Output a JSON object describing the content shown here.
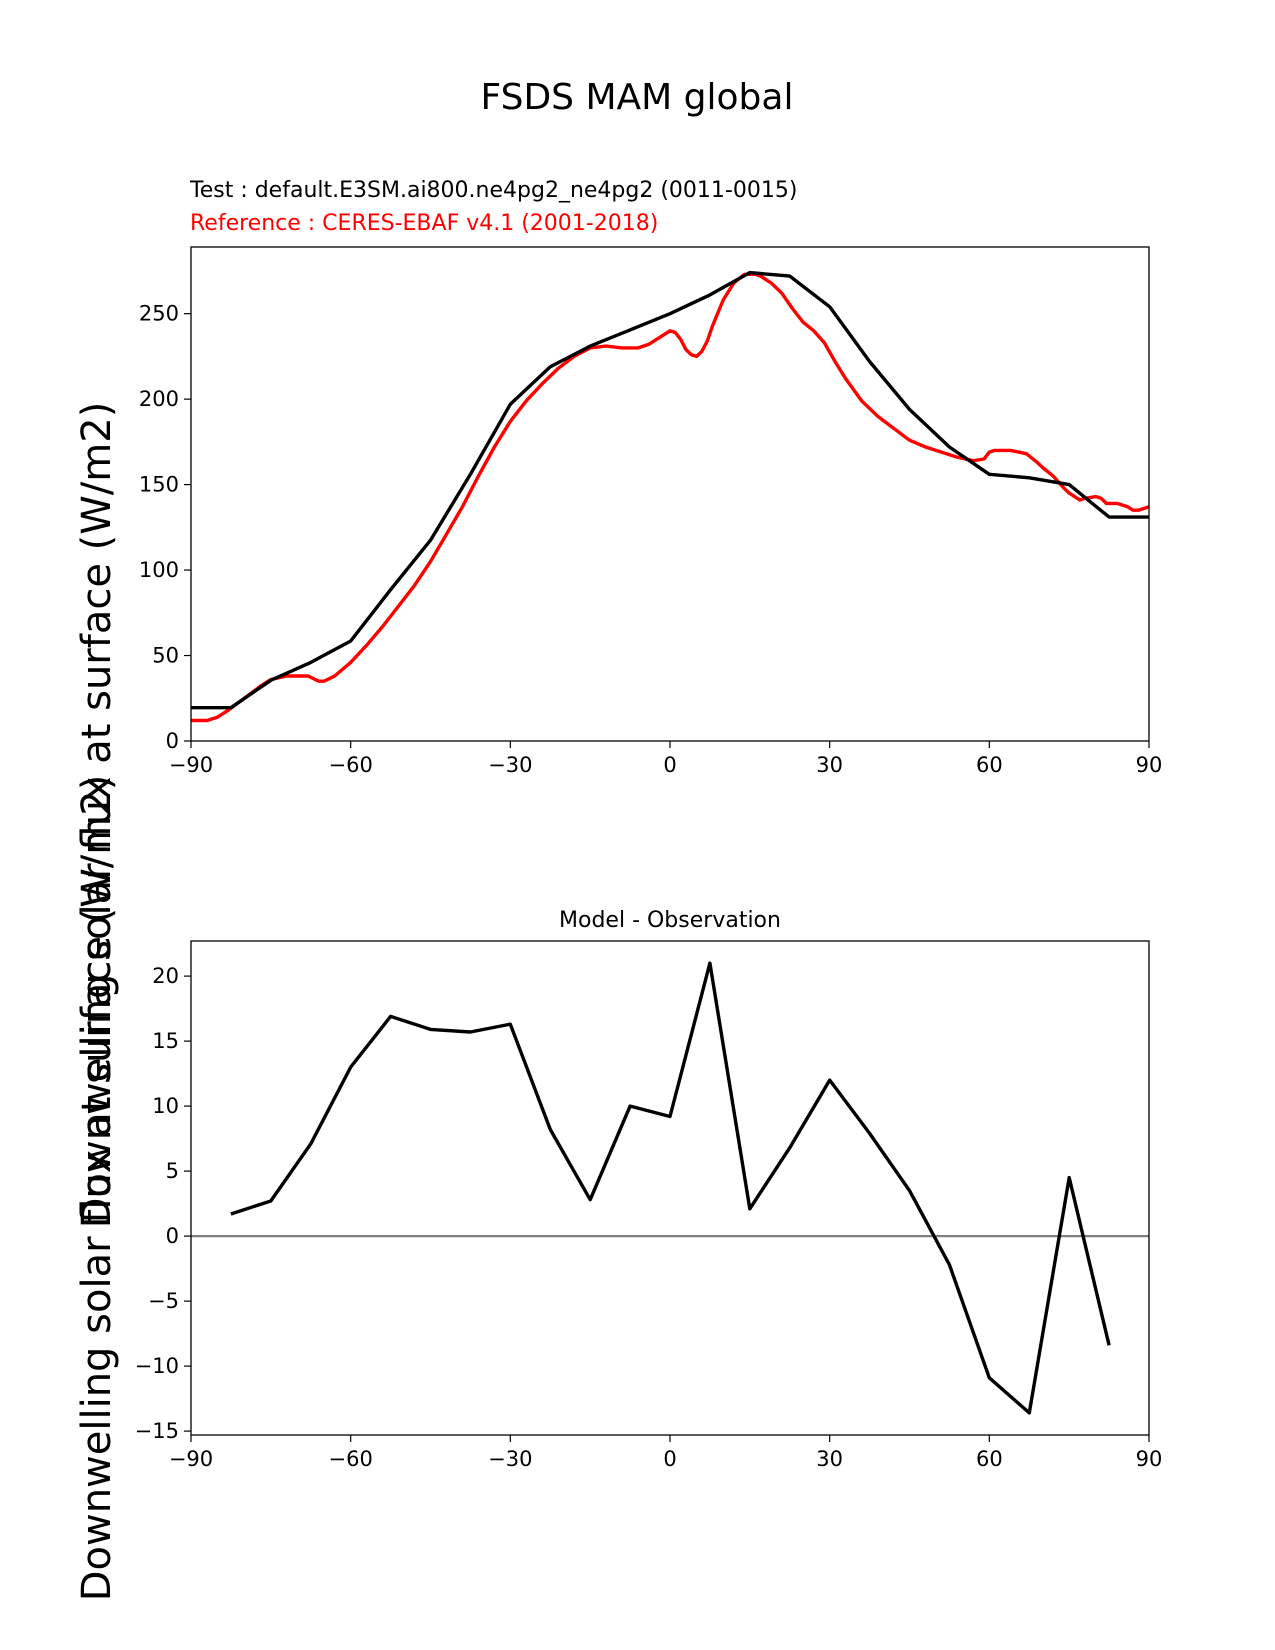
{
  "figure": {
    "title": "FSDS MAM global",
    "ylabel": "Downwelling solar flux at surface (W/m2)"
  },
  "chart_data": [
    {
      "type": "line",
      "test_label": "Test : default.E3SM.ai800.ne4pg2_ne4pg2 (0011-0015)",
      "reference_label": "Reference : CERES-EBAF v4.1 (2001-2018)",
      "xlim": [
        -90,
        90
      ],
      "ylim": [
        0,
        289
      ],
      "xticks": [
        -90,
        -60,
        -30,
        0,
        30,
        60,
        90
      ],
      "xtick_labels": [
        "−90",
        "−60",
        "−30",
        "0",
        "30",
        "60",
        "90"
      ],
      "yticks": [
        0,
        50,
        100,
        150,
        200,
        250
      ],
      "ytick_labels": [
        "0",
        "50",
        "100",
        "150",
        "200",
        "250"
      ],
      "grid": false,
      "series": [
        {
          "color": "#ff0000",
          "x": [
            -90,
            -87,
            -85,
            -83,
            -80,
            -77,
            -75,
            -72,
            -70,
            -68,
            -66,
            -65,
            -63,
            -60,
            -57,
            -54,
            -51,
            -48,
            -45,
            -42,
            -39,
            -36,
            -33,
            -30,
            -27,
            -24,
            -21,
            -18,
            -15,
            -12,
            -9,
            -6,
            -4,
            -2,
            0,
            1,
            2,
            3,
            4,
            5,
            6,
            7,
            8,
            10,
            12,
            14,
            16,
            17,
            19,
            21,
            23,
            25,
            27,
            29,
            31,
            33,
            36,
            39,
            42,
            45,
            48,
            51,
            54,
            57,
            59,
            60,
            61,
            62,
            64,
            67,
            69,
            70,
            72,
            74,
            75,
            77,
            78,
            80,
            81,
            82,
            84,
            86,
            87,
            88,
            90
          ],
          "y": [
            12,
            12,
            14,
            18,
            25,
            32,
            36,
            38,
            38,
            38,
            35,
            35,
            38,
            46,
            56,
            67,
            79,
            91,
            105,
            121,
            137,
            155,
            172,
            187,
            199,
            209,
            218,
            225,
            230,
            231,
            230,
            230,
            232,
            236,
            240,
            239,
            235,
            229,
            226,
            225,
            228,
            234,
            243,
            258,
            268,
            273,
            273,
            272,
            268,
            262,
            253,
            245,
            240,
            233,
            222,
            212,
            199,
            190,
            183,
            176,
            172,
            169,
            166,
            164,
            165,
            169,
            170,
            170,
            170,
            168,
            163,
            160,
            155,
            148,
            145,
            141,
            142,
            143,
            142,
            139,
            139,
            137,
            135,
            135,
            137
          ]
        },
        {
          "color": "#000000",
          "x": [
            -90,
            -82.5,
            -75,
            -67.5,
            -60,
            -52.5,
            -45,
            -37.5,
            -30,
            -22.5,
            -15,
            -7.5,
            0,
            7.5,
            15,
            22.5,
            30,
            37.5,
            45,
            52.5,
            60,
            67.5,
            75,
            82.5,
            90
          ],
          "y": [
            19.5,
            19.5,
            35.5,
            46,
            58.5,
            88.5,
            117.5,
            156,
            197,
            219,
            231,
            240.5,
            250,
            261,
            274,
            272,
            254,
            222,
            194,
            172,
            156,
            154,
            150,
            131,
            131
          ]
        }
      ]
    },
    {
      "type": "line",
      "title": "Model - Observation",
      "xlim": [
        -90,
        90
      ],
      "ylim": [
        -15.3,
        22.7
      ],
      "xticks": [
        -90,
        -60,
        -30,
        0,
        30,
        60,
        90
      ],
      "xtick_labels": [
        "−90",
        "−60",
        "−30",
        "0",
        "30",
        "60",
        "90"
      ],
      "yticks": [
        -15,
        -10,
        -5,
        0,
        5,
        10,
        15,
        20
      ],
      "ytick_labels": [
        "−15",
        "−10",
        "−5",
        "0",
        "5",
        "10",
        "15",
        "20"
      ],
      "zero_line_color": "#808080",
      "grid": false,
      "series": [
        {
          "color": "#000000",
          "x": [
            -82.5,
            -75,
            -67.5,
            -60,
            -52.5,
            -45,
            -37.5,
            -30,
            -22.5,
            -15,
            -7.5,
            0,
            7.5,
            15,
            22.5,
            30,
            37.5,
            45,
            52.5,
            60,
            67.5,
            75,
            82.5
          ],
          "y": [
            1.7,
            2.7,
            7.1,
            13.0,
            16.9,
            15.9,
            15.7,
            16.3,
            8.2,
            2.8,
            10.0,
            9.2,
            21.0,
            2.1,
            6.8,
            12.0,
            7.9,
            3.5,
            -2.2,
            -10.9,
            -13.6,
            4.5,
            -8.4
          ]
        }
      ]
    }
  ]
}
